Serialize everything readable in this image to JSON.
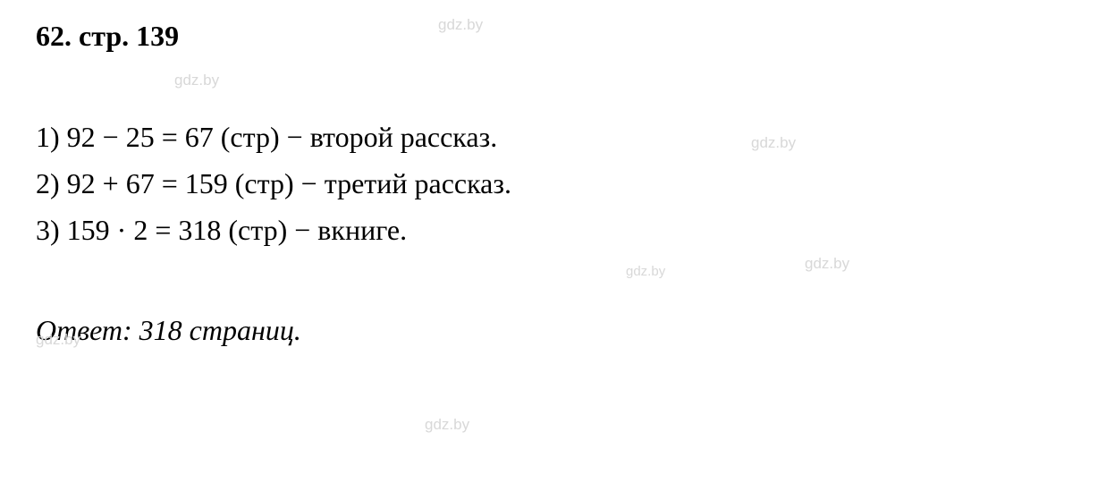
{
  "heading": {
    "problem_number": "62.",
    "page_ref": "стр. 139"
  },
  "steps": [
    {
      "index": "1)",
      "expression": "92 − 25 = 67",
      "unit": "(стр)",
      "dash": "−",
      "description": "второй рассказ."
    },
    {
      "index": "2)",
      "expression": "92 + 67 = 159",
      "unit": "(стр)",
      "dash": "−",
      "description": "третий рассказ."
    },
    {
      "index": "3)",
      "expression": "159 · 2 = 318",
      "unit": "(стр)",
      "dash": "−",
      "description": "вкниге."
    }
  ],
  "answer": {
    "label": "Ответ:",
    "value": "318 страниц."
  },
  "watermark_text": "gdz.by",
  "colors": {
    "text": "#000000",
    "background": "#ffffff",
    "watermark": "#d8d8d8"
  },
  "typography": {
    "heading_fontsize": 32,
    "body_fontsize": 32,
    "watermark_fontsize": 17,
    "font_family": "Times New Roman"
  }
}
